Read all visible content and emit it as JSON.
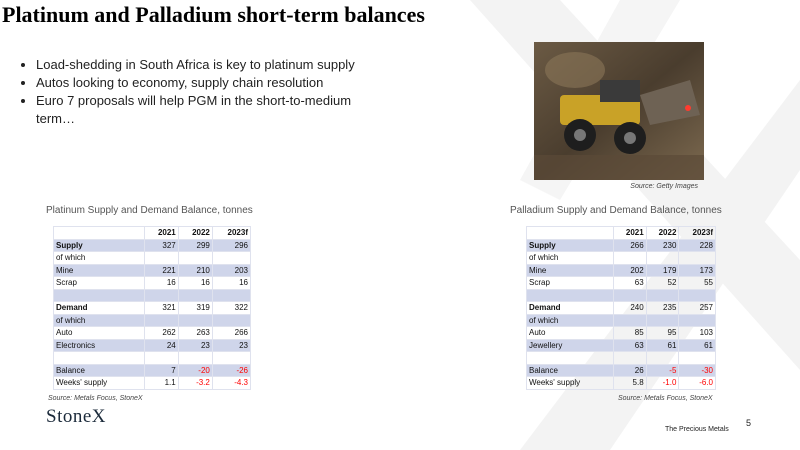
{
  "title": "Platinum and Palladium short-term balances",
  "bullets": [
    "Load-shedding in South Africa is key to platinum supply",
    "Autos looking to economy, supply chain resolution",
    "Euro 7 proposals will help PGM in the short-to-medium term…"
  ],
  "image_caption": "Source: Getty Images",
  "negative_color": "#ff0000",
  "tables": [
    {
      "caption": "Platinum Supply and Demand Balance, tonnes",
      "columns": [
        "2021",
        "2022",
        "2023f"
      ],
      "rows": [
        {
          "label": "Supply",
          "bold": true,
          "values": [
            "327",
            "299",
            "296"
          ]
        },
        {
          "label": "of which"
        },
        {
          "label": "Mine",
          "values": [
            "221",
            "210",
            "203"
          ]
        },
        {
          "label": "Scrap",
          "values": [
            "16",
            "16",
            "16"
          ]
        },
        null,
        {
          "label": "Demand",
          "bold": true,
          "values": [
            "321",
            "319",
            "322"
          ]
        },
        {
          "label": "of which"
        },
        {
          "label": "Auto",
          "values": [
            "262",
            "263",
            "266"
          ]
        },
        {
          "label": "Electronics",
          "values": [
            "24",
            "23",
            "23"
          ]
        },
        null,
        {
          "label": "Balance",
          "values": [
            "7",
            "-20",
            "-26"
          ]
        },
        {
          "label": "Weeks' supply",
          "values": [
            "1.1",
            "-3.2",
            "-4.3"
          ]
        }
      ],
      "source": "Source: Metals Focus, StoneX"
    },
    {
      "caption": "Palladium Supply and Demand Balance,  tonnes",
      "columns": [
        "2021",
        "2022",
        "2023f"
      ],
      "rows": [
        {
          "label": "Supply",
          "bold": true,
          "values": [
            "266",
            "230",
            "228"
          ]
        },
        {
          "label": "of which"
        },
        {
          "label": "Mine",
          "values": [
            "202",
            "179",
            "173"
          ]
        },
        {
          "label": "Scrap",
          "values": [
            "63",
            "52",
            "55"
          ]
        },
        null,
        {
          "label": "Demand",
          "bold": true,
          "values": [
            "240",
            "235",
            "257"
          ]
        },
        {
          "label": "of which"
        },
        {
          "label": "Auto",
          "values": [
            "85",
            "95",
            "103"
          ]
        },
        {
          "label": "Jewellery",
          "values": [
            "63",
            "61",
            "61"
          ]
        },
        null,
        {
          "label": "Balance",
          "values": [
            "26",
            "-5",
            "-30"
          ]
        },
        {
          "label": "Weeks' supply",
          "values": [
            "5.8",
            "-1.0",
            "-6.0"
          ]
        }
      ],
      "source": "Source: Metals Focus, StoneX"
    }
  ],
  "logo": "StoneX",
  "footer": "The Precious Metals",
  "page_number": 5
}
